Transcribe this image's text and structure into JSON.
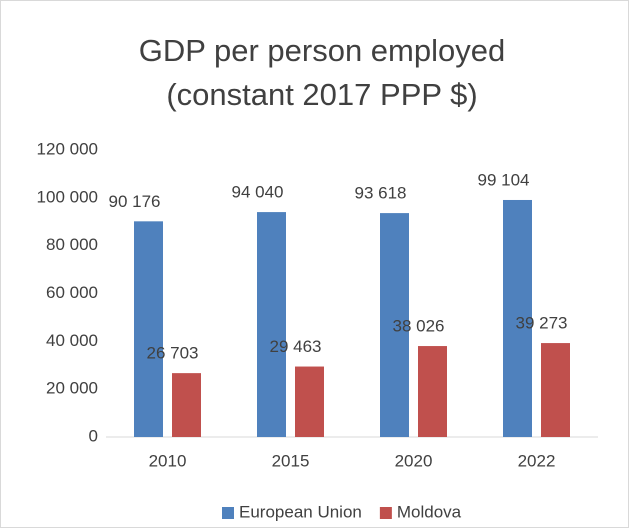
{
  "chart_data": {
    "type": "bar",
    "title": [
      "GDP per person employed",
      "(constant 2017 PPP $)"
    ],
    "categories": [
      "2010",
      "2015",
      "2020",
      "2022"
    ],
    "series": [
      {
        "name": "European Union",
        "color": "#4f81bd",
        "values": [
          90176,
          94040,
          93618,
          99104
        ],
        "value_labels": [
          "90 176",
          "94 040",
          "93 618",
          "99 104"
        ]
      },
      {
        "name": "Moldova",
        "color": "#c0504d",
        "values": [
          26703,
          29463,
          38026,
          39273
        ],
        "value_labels": [
          "26 703",
          "29 463",
          "38 026",
          "39 273"
        ]
      }
    ],
    "ylim": [
      0,
      120000
    ],
    "yticks": [
      0,
      {
        "value": 20000,
        "label": "20 000"
      },
      {
        "value": 40000,
        "label": "40 000"
      },
      {
        "value": 60000,
        "label": "60 000"
      },
      {
        "value": 80000,
        "label": "80 000"
      },
      {
        "value": 100000,
        "label": "100 000"
      },
      {
        "value": 120000,
        "label": "120 000"
      }
    ],
    "grid": false,
    "legend": "bottom"
  }
}
